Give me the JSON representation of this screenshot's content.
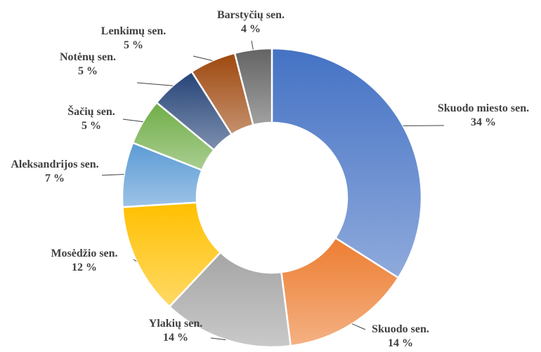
{
  "chart_data": {
    "type": "donut",
    "categories": [
      "Skuodo miesto sen.",
      "Skuodo sen.",
      "Ylakių sen.",
      "Mosėdžio sen.",
      "Aleksandrijos sen.",
      "Šačių sen.",
      "Notėnų sen.",
      "Lenkimų sen.",
      "Barstyčių sen."
    ],
    "values": [
      34,
      14,
      14,
      12,
      7,
      5,
      5,
      5,
      4
    ],
    "value_labels": [
      "34 %",
      "14 %",
      "14 %",
      "12 %",
      "7 %",
      "5 %",
      "5 %",
      "5 %",
      "4 %"
    ],
    "colors": [
      "#4472c4",
      "#ed7d31",
      "#a5a5a5",
      "#ffc000",
      "#5b9bd5",
      "#70ad47",
      "#264478",
      "#9e480e",
      "#636363"
    ]
  }
}
